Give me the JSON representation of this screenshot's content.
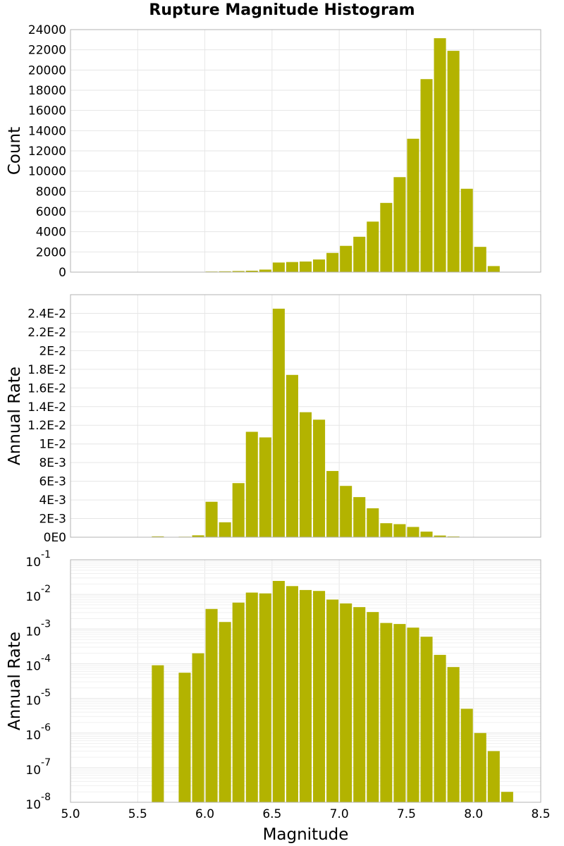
{
  "title": "Rupture Magnitude Histogram",
  "bar_color": "#b3b300",
  "grid_color": "#e6e6e6",
  "frame_color": "#b3b3b3",
  "chart_data": [
    {
      "type": "bar",
      "ylabel": "Count",
      "xlim": [
        5.0,
        8.5
      ],
      "ylim": [
        0,
        24000
      ],
      "yticks": [
        0,
        2000,
        4000,
        6000,
        8000,
        10000,
        12000,
        14000,
        16000,
        18000,
        20000,
        22000,
        24000
      ],
      "ytick_labels": [
        "0",
        "2000",
        "4000",
        "6000",
        "8000",
        "10000",
        "12000",
        "14000",
        "16000",
        "18000",
        "20000",
        "22000",
        "24000"
      ],
      "bin_width": 0.1,
      "x": [
        5.65,
        5.85,
        5.95,
        6.05,
        6.15,
        6.25,
        6.35,
        6.45,
        6.55,
        6.65,
        6.75,
        6.85,
        6.95,
        7.05,
        7.15,
        7.25,
        7.35,
        7.45,
        7.55,
        7.65,
        7.75,
        7.85,
        7.95,
        8.05,
        8.15
      ],
      "values": [
        5,
        10,
        20,
        60,
        80,
        110,
        140,
        250,
        950,
        1000,
        1050,
        1250,
        1900,
        2600,
        3500,
        5000,
        6850,
        9400,
        13200,
        19100,
        23150,
        21900,
        8250,
        2500,
        600
      ]
    },
    {
      "type": "bar",
      "ylabel": "Annual Rate",
      "xlim": [
        5.0,
        8.5
      ],
      "ylim": [
        0,
        0.026
      ],
      "yticks": [
        0,
        0.002,
        0.004,
        0.006,
        0.008,
        0.01,
        0.012,
        0.014,
        0.016,
        0.018,
        0.02,
        0.022,
        0.024
      ],
      "ytick_labels": [
        "0E0",
        "2E-3",
        "4E-3",
        "6E-3",
        "8E-3",
        "1E-2",
        "1.2E-2",
        "1.4E-2",
        "1.6E-2",
        "1.8E-2",
        "2E-2",
        "2.2E-2",
        "2.4E-2"
      ],
      "bin_width": 0.1,
      "x": [
        5.65,
        5.85,
        5.95,
        6.05,
        6.15,
        6.25,
        6.35,
        6.45,
        6.55,
        6.65,
        6.75,
        6.85,
        6.95,
        7.05,
        7.15,
        7.25,
        7.35,
        7.45,
        7.55,
        7.65,
        7.75,
        7.85,
        7.95,
        8.05,
        8.15,
        8.25
      ],
      "values": [
        9e-05,
        5.5e-05,
        0.0002,
        0.0038,
        0.0016,
        0.0058,
        0.0113,
        0.0107,
        0.0245,
        0.0174,
        0.0134,
        0.0126,
        0.0071,
        0.0055,
        0.0043,
        0.0031,
        0.0015,
        0.0014,
        0.0011,
        0.0006,
        0.00018,
        8e-05,
        5e-06,
        1e-06,
        3e-07,
        2e-08
      ]
    },
    {
      "type": "bar",
      "ylabel": "Annual Rate",
      "xlabel": "Magnitude",
      "log_y": true,
      "xlim": [
        5.0,
        8.5
      ],
      "ylim": [
        1e-08,
        0.1
      ],
      "xticks": [
        5.0,
        5.5,
        6.0,
        6.5,
        7.0,
        7.5,
        8.0,
        8.5
      ],
      "xtick_labels": [
        "5.0",
        "5.5",
        "6.0",
        "6.5",
        "7.0",
        "7.5",
        "8.0",
        "8.5"
      ],
      "ytick_exponents": [
        "-8",
        "-7",
        "-6",
        "-5",
        "-4",
        "-3",
        "-2",
        "-1"
      ],
      "ytick_base": "10",
      "bin_width": 0.1,
      "x": [
        5.65,
        5.85,
        5.95,
        6.05,
        6.15,
        6.25,
        6.35,
        6.45,
        6.55,
        6.65,
        6.75,
        6.85,
        6.95,
        7.05,
        7.15,
        7.25,
        7.35,
        7.45,
        7.55,
        7.65,
        7.75,
        7.85,
        7.95,
        8.05,
        8.15,
        8.25
      ],
      "values": [
        9e-05,
        5.5e-05,
        0.0002,
        0.0038,
        0.0016,
        0.0058,
        0.0113,
        0.0107,
        0.0245,
        0.0174,
        0.0134,
        0.0126,
        0.0071,
        0.0055,
        0.0043,
        0.0031,
        0.0015,
        0.0014,
        0.0011,
        0.0006,
        0.00018,
        8e-05,
        5e-06,
        1e-06,
        3e-07,
        2e-08
      ]
    }
  ]
}
